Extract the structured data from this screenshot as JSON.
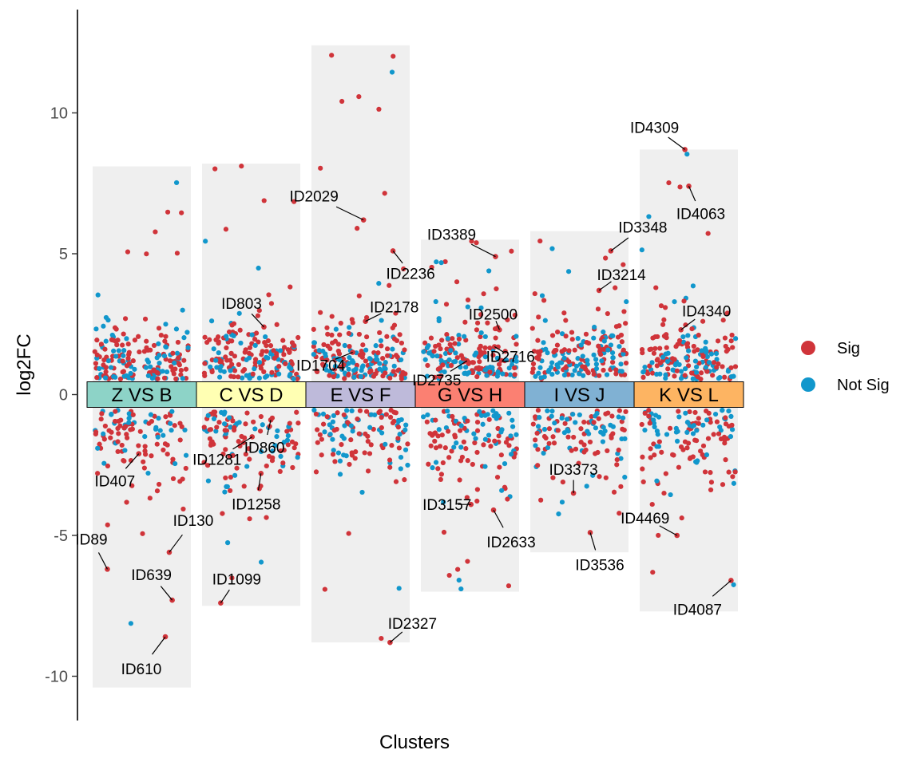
{
  "chart_data": {
    "type": "scatter",
    "xlabel": "Clusters",
    "ylabel": "log2FC",
    "ylim": [
      -11.0,
      13.3
    ],
    "yticks": [
      10,
      5,
      0,
      -5,
      -10
    ],
    "ytick_labels": [
      "10",
      "5",
      "0",
      "-5",
      "-10"
    ],
    "grid": false,
    "legend_position": "right",
    "colors": {
      "Sig": "#d0343a",
      "Not Sig": "#1197cc",
      "background_bar": "#efefef"
    },
    "legend": [
      {
        "name": "Sig",
        "color": "#d0343a"
      },
      {
        "name": "Not Sig",
        "color": "#1197cc"
      }
    ],
    "clusters": [
      {
        "label": "Z VS B",
        "color": "#8dd3c7",
        "ymax": 8.1,
        "ymin": -10.4
      },
      {
        "label": "C VS D",
        "color": "#ffffb3",
        "ymax": 8.2,
        "ymin": -7.5
      },
      {
        "label": "E VS F",
        "color": "#bebada",
        "ymax": 12.4,
        "ymin": -8.8
      },
      {
        "label": "G VS H",
        "color": "#fb8072",
        "ymax": 5.5,
        "ymin": -7.0
      },
      {
        "label": "I VS J",
        "color": "#80b1d3",
        "ymax": 5.8,
        "ymin": -5.6
      },
      {
        "label": "K VS L",
        "color": "#fdb462",
        "ymax": 8.7,
        "ymin": -7.7
      }
    ],
    "labeled_points": [
      {
        "cluster": 0,
        "id": "ID407",
        "x": -0.03,
        "y": -2.1
      },
      {
        "cluster": 0,
        "id": "ID89",
        "x": -0.35,
        "y": -6.2
      },
      {
        "cluster": 0,
        "id": "ID130",
        "x": 0.28,
        "y": -5.6
      },
      {
        "cluster": 0,
        "id": "ID639",
        "x": 0.31,
        "y": -7.3
      },
      {
        "cluster": 0,
        "id": "ID610",
        "x": 0.24,
        "y": -8.6
      },
      {
        "cluster": 1,
        "id": "ID803",
        "x": 0.13,
        "y": 2.4
      },
      {
        "cluster": 1,
        "id": "ID1281",
        "x": 0.01,
        "y": -1.5
      },
      {
        "cluster": 1,
        "id": "ID860",
        "x": 0.2,
        "y": -0.9
      },
      {
        "cluster": 1,
        "id": "ID1258",
        "x": 0.1,
        "y": -2.8
      },
      {
        "cluster": 1,
        "id": "ID1099",
        "x": -0.31,
        "y": -7.4
      },
      {
        "cluster": 2,
        "id": "ID2029",
        "x": 0.03,
        "y": 6.2
      },
      {
        "cluster": 2,
        "id": "ID2236",
        "x": 0.33,
        "y": 5.1
      },
      {
        "cluster": 2,
        "id": "ID2178",
        "x": 0.05,
        "y": 2.6
      },
      {
        "cluster": 2,
        "id": "ID1704",
        "x": -0.08,
        "y": 1.5
      },
      {
        "cluster": 2,
        "id": "ID2327",
        "x": 0.3,
        "y": -8.8
      },
      {
        "cluster": 3,
        "id": "ID3389",
        "x": 0.26,
        "y": 4.9
      },
      {
        "cluster": 3,
        "id": "ID2500",
        "x": 0.3,
        "y": 2.3
      },
      {
        "cluster": 3,
        "id": "ID2716",
        "x": 0.25,
        "y": 1.7
      },
      {
        "cluster": 3,
        "id": "ID2735",
        "x": -0.03,
        "y": 1.2
      },
      {
        "cluster": 3,
        "id": "ID3157",
        "x": 0.01,
        "y": -3.9
      },
      {
        "cluster": 3,
        "id": "ID2633",
        "x": 0.24,
        "y": -4.1
      },
      {
        "cluster": 4,
        "id": "ID3348",
        "x": 0.32,
        "y": 5.1
      },
      {
        "cluster": 4,
        "id": "ID3214",
        "x": 0.2,
        "y": 3.7
      },
      {
        "cluster": 4,
        "id": "ID3373",
        "x": -0.06,
        "y": -3.5
      },
      {
        "cluster": 4,
        "id": "ID3536",
        "x": 0.11,
        "y": -4.9
      },
      {
        "cluster": 5,
        "id": "ID4309",
        "x": -0.04,
        "y": 8.7
      },
      {
        "cluster": 5,
        "id": "ID4063",
        "x": 0.0,
        "y": 7.4
      },
      {
        "cluster": 5,
        "id": "ID4340",
        "x": -0.08,
        "y": 2.3
      },
      {
        "cluster": 5,
        "id": "ID4469",
        "x": -0.12,
        "y": -5.0
      },
      {
        "cluster": 5,
        "id": "ID4087",
        "x": 0.43,
        "y": -6.6
      }
    ]
  }
}
